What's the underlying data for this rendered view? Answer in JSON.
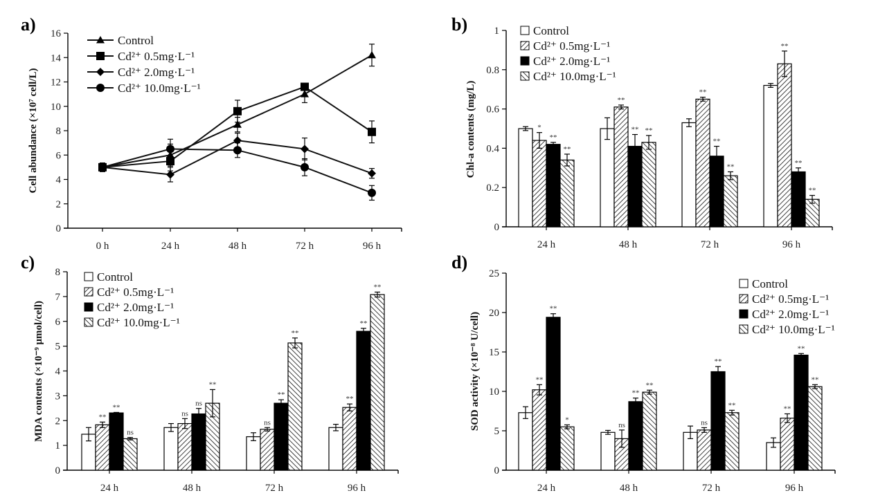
{
  "legend_labels": [
    "Control",
    "Cd²⁺ 0.5mg·L⁻¹",
    "Cd²⁺ 2.0mg·L⁻¹",
    "Cd²⁺ 10.0mg·L⁻¹"
  ],
  "chart_data": [
    {
      "id": "a",
      "panel_label": "a)",
      "type": "line",
      "title": "",
      "xlabel": "",
      "ylabel": "Cell abundance (×10⁷ cell/L)",
      "categories": [
        "0 h",
        "24 h",
        "48 h",
        "72 h",
        "96 h"
      ],
      "ylim": [
        0,
        16
      ],
      "yticks": [
        0,
        2,
        4,
        6,
        8,
        10,
        12,
        14,
        16
      ],
      "legend_position": "top-left",
      "markers": [
        "triangle",
        "square",
        "diamond",
        "circle"
      ],
      "series": [
        {
          "name": "Control",
          "values": [
            5.0,
            6.0,
            8.5,
            11.0,
            14.2
          ],
          "errors": [
            0.35,
            0.9,
            0.6,
            0.7,
            0.9
          ]
        },
        {
          "name": "Cd²⁺ 0.5mg·L⁻¹",
          "values": [
            5.0,
            5.5,
            9.6,
            11.6,
            7.9
          ],
          "errors": [
            0.35,
            0.8,
            0.9,
            0.2,
            0.9
          ]
        },
        {
          "name": "Cd²⁺ 2.0mg·L⁻¹",
          "values": [
            5.0,
            4.4,
            7.2,
            6.5,
            4.5
          ],
          "errors": [
            0.35,
            0.6,
            0.6,
            0.9,
            0.4
          ]
        },
        {
          "name": "Cd²⁺ 10.0mg·L⁻¹",
          "values": [
            5.0,
            6.5,
            6.4,
            5.0,
            2.9
          ],
          "errors": [
            0.35,
            0.8,
            0.6,
            0.7,
            0.6
          ]
        }
      ]
    },
    {
      "id": "b",
      "panel_label": "b)",
      "type": "bar",
      "title": "",
      "xlabel": "",
      "ylabel": "Chl-a contents (mg/L)",
      "categories": [
        "24 h",
        "48 h",
        "72 h",
        "96 h"
      ],
      "ylim": [
        0,
        1
      ],
      "yticks": [
        0,
        0.2,
        0.4,
        0.6,
        0.8,
        1
      ],
      "ytick_labels": [
        "0",
        "0.2",
        "0.4",
        "0.6",
        "0.8",
        "1"
      ],
      "legend_position": "top-left",
      "series": [
        {
          "name": "Control",
          "values": [
            0.5,
            0.5,
            0.53,
            0.72
          ],
          "errors": [
            0.01,
            0.055,
            0.02,
            0.01
          ],
          "sig": [
            "",
            "",
            "",
            ""
          ]
        },
        {
          "name": "Cd²⁺ 0.5mg·L⁻¹",
          "values": [
            0.44,
            0.61,
            0.65,
            0.83
          ],
          "errors": [
            0.04,
            0.01,
            0.01,
            0.065
          ],
          "sig": [
            "*",
            "**",
            "**",
            "**"
          ]
        },
        {
          "name": "Cd²⁺ 2.0mg·L⁻¹",
          "values": [
            0.42,
            0.41,
            0.36,
            0.28
          ],
          "errors": [
            0.01,
            0.06,
            0.05,
            0.02
          ],
          "sig": [
            "**",
            "**",
            "**",
            "**"
          ]
        },
        {
          "name": "Cd²⁺ 10.0mg·L⁻¹",
          "values": [
            0.34,
            0.43,
            0.26,
            0.14
          ],
          "errors": [
            0.03,
            0.035,
            0.02,
            0.02
          ],
          "sig": [
            "**",
            "**",
            "**",
            "**"
          ]
        }
      ]
    },
    {
      "id": "c",
      "panel_label": "c)",
      "type": "bar",
      "title": "",
      "xlabel": "",
      "ylabel": "MDA contents (×10⁻⁹ μmol/cell)",
      "categories": [
        "24 h",
        "48 h",
        "72 h",
        "96 h"
      ],
      "ylim": [
        0,
        8
      ],
      "yticks": [
        0,
        1,
        2,
        3,
        4,
        5,
        6,
        7,
        8
      ],
      "legend_position": "top-left",
      "series": [
        {
          "name": "Control",
          "values": [
            1.45,
            1.72,
            1.35,
            1.72
          ],
          "errors": [
            0.27,
            0.16,
            0.16,
            0.13
          ],
          "sig": [
            "",
            "",
            "",
            ""
          ]
        },
        {
          "name": "Cd²⁺ 0.5mg·L⁻¹",
          "values": [
            1.83,
            1.88,
            1.65,
            2.53
          ],
          "errors": [
            0.11,
            0.2,
            0.07,
            0.14
          ],
          "sig": [
            "**",
            "ns",
            "ns",
            "**"
          ]
        },
        {
          "name": "Cd²⁺ 2.0mg·L⁻¹",
          "values": [
            2.31,
            2.27,
            2.7,
            5.6
          ],
          "errors": [
            0.02,
            0.22,
            0.14,
            0.12
          ],
          "sig": [
            "**",
            "ns",
            "**",
            "**"
          ]
        },
        {
          "name": "Cd²⁺ 10.0mg·L⁻¹",
          "values": [
            1.27,
            2.7,
            5.13,
            7.08
          ],
          "errors": [
            0.05,
            0.55,
            0.2,
            0.1
          ],
          "sig": [
            "ns",
            "**",
            "**",
            "**"
          ]
        }
      ]
    },
    {
      "id": "d",
      "panel_label": "d)",
      "type": "bar",
      "title": "",
      "xlabel": "",
      "ylabel": "SOD activity (×10⁻⁸ U/cell)",
      "categories": [
        "24 h",
        "48 h",
        "72 h",
        "96 h"
      ],
      "ylim": [
        0,
        25
      ],
      "yticks": [
        0,
        5,
        10,
        15,
        20,
        25
      ],
      "legend_position": "top-right",
      "series": [
        {
          "name": "Control",
          "values": [
            7.3,
            4.8,
            4.8,
            3.5
          ],
          "errors": [
            0.75,
            0.25,
            0.8,
            0.6
          ],
          "sig": [
            "",
            "",
            "",
            ""
          ]
        },
        {
          "name": "Cd²⁺ 0.5mg·L⁻¹",
          "values": [
            10.2,
            4.0,
            5.1,
            6.6
          ],
          "errors": [
            0.65,
            1.1,
            0.3,
            0.55
          ],
          "sig": [
            "**",
            "ns",
            "ns",
            "**"
          ]
        },
        {
          "name": "Cd²⁺ 2.0mg·L⁻¹",
          "values": [
            19.4,
            8.7,
            12.5,
            14.6
          ],
          "errors": [
            0.45,
            0.45,
            0.65,
            0.2
          ],
          "sig": [
            "**",
            "**",
            "**",
            "**"
          ]
        },
        {
          "name": "Cd²⁺ 10.0mg·L⁻¹",
          "values": [
            5.5,
            9.9,
            7.3,
            10.6
          ],
          "errors": [
            0.25,
            0.25,
            0.3,
            0.25
          ],
          "sig": [
            "*",
            "**",
            "**",
            "**"
          ]
        }
      ]
    }
  ]
}
